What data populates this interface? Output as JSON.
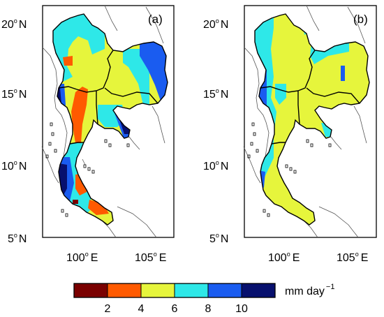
{
  "colors": {
    "c0_2": "#7a0000",
    "c2_4": "#ff5a00",
    "c4_6": "#e6f53c",
    "c6_8": "#2ee8e8",
    "c8_10": "#1a5cf0",
    "c10_plus": "#07106e"
  },
  "panels": [
    {
      "label": "(a)",
      "lat_ticks": [
        {
          "value": "20",
          "deg": "o",
          "hemi": "N"
        },
        {
          "value": "15",
          "deg": "o",
          "hemi": "N"
        },
        {
          "value": "10",
          "deg": "o",
          "hemi": "N"
        },
        {
          "value": "5",
          "deg": "o",
          "hemi": "N"
        }
      ],
      "lon_ticks": [
        {
          "value": "100",
          "deg": "o",
          "hemi": "E"
        },
        {
          "value": "105",
          "deg": "o",
          "hemi": "E"
        }
      ]
    },
    {
      "label": "(b)",
      "lat_ticks": [
        {
          "value": "20",
          "deg": "o",
          "hemi": "N"
        },
        {
          "value": "15",
          "deg": "o",
          "hemi": "N"
        },
        {
          "value": "10",
          "deg": "o",
          "hemi": "N"
        },
        {
          "value": "5",
          "deg": "o",
          "hemi": "N"
        }
      ],
      "lon_ticks": [
        {
          "value": "100",
          "deg": "o",
          "hemi": "E"
        },
        {
          "value": "105",
          "deg": "o",
          "hemi": "E"
        }
      ]
    }
  ],
  "colorbar": {
    "ticks": [
      "2",
      "4",
      "6",
      "8",
      "10"
    ],
    "unit": "mm day",
    "unit_exp": "−1"
  }
}
